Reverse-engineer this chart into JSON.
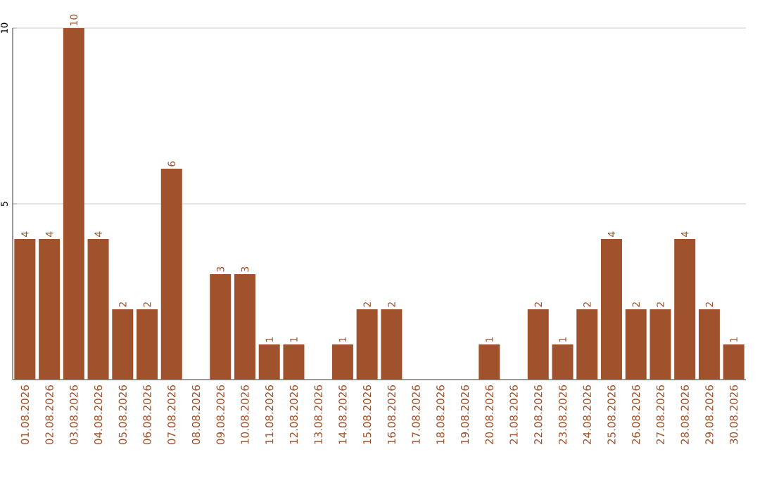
{
  "chart_data": {
    "type": "bar",
    "categories": [
      "01.08.2026",
      "02.08.2026",
      "03.08.2026",
      "04.08.2026",
      "05.08.2026",
      "06.08.2026",
      "07.08.2026",
      "08.08.2026",
      "09.08.2026",
      "10.08.2026",
      "11.08.2026",
      "12.08.2026",
      "13.08.2026",
      "14.08.2026",
      "15.08.2026",
      "16.08.2026",
      "17.08.2026",
      "18.08.2026",
      "19.08.2026",
      "20.08.2026",
      "21.08.2026",
      "22.08.2026",
      "23.08.2026",
      "24.08.2026",
      "25.08.2026",
      "26.08.2026",
      "27.08.2026",
      "28.08.2026",
      "29.08.2026",
      "30.08.2026"
    ],
    "values": [
      4,
      4,
      10,
      4,
      2,
      2,
      6,
      0,
      3,
      3,
      1,
      1,
      0,
      1,
      2,
      2,
      0,
      0,
      0,
      1,
      0,
      2,
      1,
      2,
      4,
      2,
      2,
      4,
      2,
      1
    ],
    "value_labels": [
      "4",
      "4",
      "10",
      "4",
      "2",
      "2",
      "6",
      null,
      "3",
      "3",
      "1",
      "1",
      null,
      "1",
      "2",
      "2",
      null,
      null,
      null,
      "1",
      null,
      "2",
      "1",
      "2",
      "4",
      "2",
      "2",
      "4",
      "2",
      "1"
    ],
    "color": "#a0522d",
    "ylim": [
      0,
      10
    ],
    "yticks": [
      5,
      10
    ],
    "grid": "y"
  }
}
